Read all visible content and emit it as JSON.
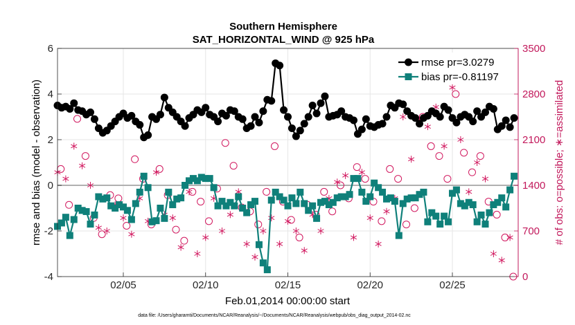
{
  "chart_data": {
    "type": "line",
    "title": "Southern Hemisphere",
    "subtitle": "SAT_HORIZONTAL_WIND @ 925 hPa",
    "xlabel": "Feb.01,2014 00:00:00 start",
    "ylabel_left": "rmse and bias (model - observation)",
    "ylabel_right": "# of obs: o=possible; ∗=assimilated",
    "xlim": [
      1,
      29
    ],
    "ylim_left": [
      -4,
      6
    ],
    "ylim_right": [
      0,
      3500
    ],
    "x_ticks": [
      5,
      10,
      15,
      20,
      25
    ],
    "x_tick_labels": [
      "02/05",
      "02/10",
      "02/15",
      "02/20",
      "02/25"
    ],
    "y_ticks_left": [
      -4,
      -2,
      0,
      2,
      4,
      6
    ],
    "y_tick_labels_left": [
      "-4",
      "-2",
      "0",
      "2",
      "4",
      "6"
    ],
    "y_ticks_right": [
      0,
      700,
      1400,
      2100,
      2800,
      3500
    ],
    "y_tick_labels_right": [
      "0",
      "700",
      "1400",
      "2100",
      "2800",
      "3500"
    ],
    "legend": [
      "rmse pr=3.0279",
      "bias pr=-0.81197"
    ],
    "footnote": "data file: /Users/gharamti/Documents/NCAR/Reanalysis/~/Documents/NCAR/Reanalysis/webpub/obs_diag_output_2014-02.nc",
    "colors": {
      "rmse": "#000000",
      "bias": "#0f807a",
      "obs": "#d1175e",
      "zero_line": "#b0b0b0",
      "right_axis": "#c2185b"
    },
    "series": [
      {
        "name": "rmse",
        "x": [
          1.0,
          1.25,
          1.5,
          1.75,
          2.0,
          2.25,
          2.5,
          2.75,
          3.0,
          3.25,
          3.5,
          3.75,
          4.0,
          4.25,
          4.5,
          4.75,
          5.0,
          5.25,
          5.5,
          5.75,
          6.0,
          6.25,
          6.5,
          6.75,
          7.0,
          7.25,
          7.5,
          7.75,
          8.0,
          8.25,
          8.5,
          8.75,
          9.0,
          9.25,
          9.5,
          9.75,
          10.0,
          10.25,
          10.5,
          10.75,
          11.0,
          11.25,
          11.5,
          11.75,
          12.0,
          12.25,
          12.5,
          12.75,
          13.0,
          13.25,
          13.5,
          13.75,
          14.0,
          14.25,
          14.5,
          14.75,
          15.0,
          15.25,
          15.5,
          15.75,
          16.0,
          16.25,
          16.5,
          16.75,
          17.0,
          17.25,
          17.5,
          17.75,
          18.0,
          18.25,
          18.5,
          18.75,
          19.0,
          19.25,
          19.5,
          19.75,
          20.0,
          20.25,
          20.5,
          20.75,
          21.0,
          21.25,
          21.5,
          21.75,
          22.0,
          22.25,
          22.5,
          22.75,
          23.0,
          23.25,
          23.5,
          23.75,
          24.0,
          24.25,
          24.5,
          24.75,
          25.0,
          25.25,
          25.5,
          25.75,
          26.0,
          26.25,
          26.5,
          26.75,
          27.0,
          27.25,
          27.5,
          27.75,
          28.0,
          28.25,
          28.5,
          28.75
        ],
        "values": [
          3.5,
          3.4,
          3.45,
          3.35,
          3.6,
          3.3,
          3.25,
          3.1,
          3.2,
          2.9,
          2.5,
          2.3,
          2.4,
          2.6,
          2.8,
          3.0,
          3.15,
          2.95,
          3.05,
          2.8,
          2.65,
          2.1,
          2.2,
          3.0,
          2.9,
          3.1,
          3.85,
          3.4,
          3.2,
          3.0,
          2.8,
          2.6,
          2.95,
          3.1,
          3.3,
          3.2,
          3.4,
          3.1,
          3.0,
          2.8,
          3.15,
          3.05,
          3.3,
          3.25,
          3.0,
          2.9,
          2.5,
          2.6,
          3.0,
          2.75,
          3.25,
          3.75,
          3.7,
          5.35,
          5.25,
          3.3,
          3.0,
          2.5,
          2.15,
          2.4,
          2.7,
          3.0,
          3.5,
          3.15,
          3.6,
          3.9,
          3.0,
          3.05,
          3.1,
          3.25,
          3.0,
          2.95,
          2.85,
          2.25,
          2.45,
          2.9,
          2.6,
          2.55,
          2.65,
          2.7,
          3.0,
          3.5,
          3.4,
          3.6,
          3.55,
          3.25,
          3.05,
          2.95,
          2.7,
          2.95,
          3.05,
          3.25,
          3.15,
          3.0,
          3.45,
          3.3,
          2.95,
          2.75,
          3.0,
          3.1,
          3.0,
          2.8,
          3.25,
          3.0,
          3.2,
          3.45,
          3.35,
          2.45,
          2.6,
          2.85,
          2.55,
          2.95
        ]
      },
      {
        "name": "bias",
        "x": [
          1.0,
          1.25,
          1.5,
          1.75,
          2.0,
          2.25,
          2.5,
          2.75,
          3.0,
          3.25,
          3.5,
          3.75,
          4.0,
          4.25,
          4.5,
          4.75,
          5.0,
          5.25,
          5.5,
          5.75,
          6.0,
          6.25,
          6.5,
          6.75,
          7.0,
          7.25,
          7.5,
          7.75,
          8.0,
          8.25,
          8.5,
          8.75,
          9.0,
          9.25,
          9.5,
          9.75,
          10.0,
          10.25,
          10.5,
          10.75,
          11.0,
          11.25,
          11.5,
          11.75,
          12.0,
          12.25,
          12.5,
          12.75,
          13.0,
          13.25,
          13.5,
          13.75,
          14.0,
          14.25,
          14.5,
          14.75,
          15.0,
          15.25,
          15.5,
          15.75,
          16.0,
          16.25,
          16.5,
          16.75,
          17.0,
          17.25,
          17.5,
          17.75,
          18.0,
          18.25,
          18.5,
          18.75,
          19.0,
          19.25,
          19.5,
          19.75,
          20.0,
          20.25,
          20.5,
          20.75,
          21.0,
          21.25,
          21.5,
          21.75,
          22.0,
          22.25,
          22.5,
          22.75,
          23.0,
          23.25,
          23.5,
          23.75,
          24.0,
          24.25,
          24.5,
          24.75,
          25.0,
          25.25,
          25.5,
          25.75,
          26.0,
          26.25,
          26.5,
          26.75,
          27.0,
          27.25,
          27.5,
          27.75,
          28.0,
          28.25,
          28.5,
          28.75
        ],
        "values": [
          -1.8,
          -1.65,
          -1.4,
          -2.2,
          -1.5,
          -1.0,
          -1.1,
          -1.15,
          -1.7,
          -1.3,
          -0.5,
          -0.6,
          -0.55,
          -0.9,
          -1.0,
          -0.85,
          -0.95,
          -1.1,
          -1.5,
          -0.8,
          -0.3,
          0.4,
          -0.1,
          -1.6,
          -1.55,
          -1.0,
          -1.45,
          -0.3,
          -0.85,
          -0.6,
          -0.55,
          0.0,
          0.2,
          0.3,
          0.2,
          0.35,
          0.3,
          0.3,
          -0.1,
          -0.9,
          -0.7,
          -0.9,
          -0.75,
          -0.9,
          -0.5,
          -1.0,
          -1.2,
          -0.85,
          -0.7,
          -2.6,
          -3.4,
          -3.7,
          -0.65,
          -0.3,
          -0.5,
          -0.65,
          -0.9,
          -0.55,
          -0.8,
          -0.3,
          -0.8,
          -1.1,
          -0.9,
          -1.45,
          -0.75,
          -0.7,
          -0.85,
          -0.75,
          -0.55,
          -0.5,
          -0.5,
          -0.4,
          0.3,
          0.3,
          -0.3,
          -0.7,
          -0.5,
          0.1,
          -0.1,
          -0.3,
          -0.6,
          -0.55,
          -0.7,
          -2.2,
          -0.8,
          -0.6,
          -0.55,
          -0.55,
          -0.4,
          -0.3,
          -1.6,
          -1.2,
          -1.35,
          -1.7,
          -1.35,
          -1.6,
          -0.35,
          -0.2,
          -0.8,
          -0.9,
          -0.75,
          -0.85,
          -1.6,
          -1.3,
          -1.7,
          -1.2,
          -0.85,
          -0.75,
          -0.55,
          -0.95,
          -0.2,
          0.4
        ]
      },
      {
        "name": "obs_possible",
        "x": [
          1.2,
          1.7,
          2.2,
          2.7,
          3.2,
          3.7,
          4.2,
          4.7,
          5.2,
          5.7,
          6.2,
          6.7,
          7.2,
          7.7,
          8.2,
          8.7,
          9.2,
          9.7,
          10.2,
          10.7,
          11.2,
          11.7,
          12.2,
          12.7,
          13.2,
          13.7,
          14.2,
          14.7,
          15.2,
          15.7,
          16.2,
          16.7,
          17.2,
          17.7,
          18.2,
          18.7,
          19.2,
          19.7,
          20.2,
          20.7,
          21.2,
          21.7,
          22.2,
          22.7,
          23.2,
          23.7,
          24.2,
          24.7,
          25.2,
          25.7,
          26.2,
          26.7,
          27.2,
          27.7,
          28.2,
          28.7
        ],
        "values": [
          1650,
          1100,
          2420,
          1850,
          900,
          650,
          1250,
          1200,
          780,
          1800,
          1500,
          800,
          1650,
          1250,
          720,
          550,
          1300,
          1150,
          850,
          1350,
          2050,
          1700,
          1060,
          1000,
          800,
          1300,
          2000,
          1150,
          870,
          600,
          1100,
          950,
          1300,
          1000,
          1400,
          1200,
          1680,
          1500,
          1150,
          850,
          1650,
          1500,
          800,
          1050,
          2450,
          2000,
          1850,
          1500,
          2800,
          1900,
          1600,
          1850,
          1150,
          950,
          600,
          0
        ]
      },
      {
        "name": "obs_assimilated",
        "x": [
          1.0,
          1.5,
          2.0,
          2.5,
          3.0,
          3.5,
          4.0,
          4.5,
          5.0,
          5.5,
          6.0,
          6.5,
          7.0,
          7.5,
          8.0,
          8.5,
          9.0,
          9.5,
          10.0,
          10.5,
          11.0,
          11.5,
          12.0,
          12.5,
          13.0,
          13.5,
          14.0,
          14.5,
          15.0,
          15.5,
          16.0,
          16.5,
          17.0,
          17.5,
          18.0,
          18.5,
          19.0,
          19.5,
          20.0,
          20.5,
          21.0,
          21.5,
          22.0,
          22.5,
          23.0,
          23.5,
          24.0,
          24.5,
          25.0,
          25.5,
          26.0,
          26.5,
          27.0,
          27.5,
          28.0,
          28.5
        ],
        "values": [
          1600,
          1500,
          2000,
          1700,
          1400,
          750,
          700,
          1100,
          900,
          650,
          1200,
          850,
          1600,
          950,
          900,
          450,
          1300,
          350,
          600,
          1200,
          700,
          950,
          1300,
          500,
          300,
          700,
          900,
          500,
          850,
          700,
          400,
          950,
          700,
          1200,
          1450,
          1550,
          600,
          1600,
          900,
          500,
          1000,
          1200,
          2450,
          1800,
          2400,
          2300,
          2600,
          2000,
          2900,
          2100,
          1300,
          1750,
          1500,
          350,
          250,
          600
        ]
      }
    ]
  }
}
